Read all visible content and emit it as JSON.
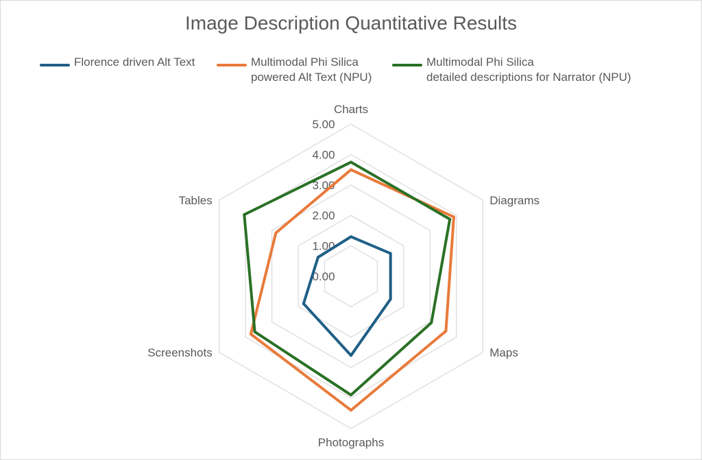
{
  "chart_data": {
    "type": "radar",
    "title": "Image Description Quantitative Results",
    "categories": [
      "Charts",
      "Diagrams",
      "Maps",
      "Photographs",
      "Screenshots",
      "Tables"
    ],
    "rlim": [
      0,
      5
    ],
    "ticks": [
      "0.00",
      "1.00",
      "2.00",
      "3.00",
      "4.00",
      "5.00"
    ],
    "grid": true,
    "legend_position": "top",
    "series": [
      {
        "name": "Florence driven Alt Text",
        "color": "#1f5f86",
        "values": [
          1.3,
          1.5,
          1.5,
          2.6,
          1.8,
          1.25
        ]
      },
      {
        "name": "Multimodal Phi Silica\npowered Alt Text (NPU)",
        "color": "#e97a3a",
        "values": [
          3.5,
          3.9,
          3.6,
          4.4,
          3.8,
          2.85
        ]
      },
      {
        "name": "Multimodal Phi Silica\ndetailed descriptions for Narrator (NPU)",
        "color": "#2a7126",
        "values": [
          3.75,
          3.75,
          3.05,
          3.9,
          3.65,
          4.05
        ]
      }
    ]
  }
}
